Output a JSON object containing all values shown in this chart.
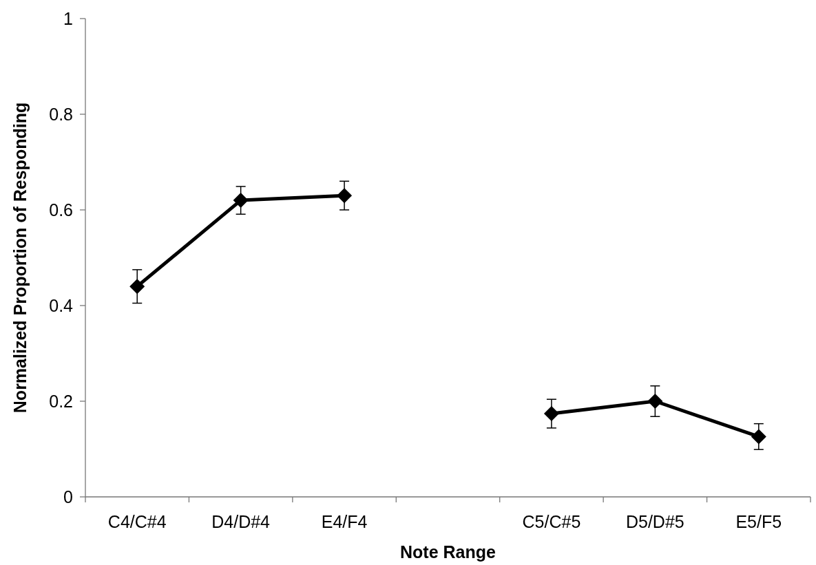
{
  "chart_data": {
    "type": "line",
    "xlabel": "Note Range",
    "ylabel": "Normalized Proportion of Responding",
    "categories": [
      "C4/C#4",
      "D4/D#4",
      "E4/F4",
      null,
      "C5/C#5",
      "D5/D#5",
      "E5/F5"
    ],
    "series": [
      {
        "color": "#000000",
        "values": [
          0.44,
          0.62,
          0.63,
          null,
          0.174,
          0.2,
          0.126
        ],
        "errors": [
          0.035,
          0.029,
          0.03,
          null,
          0.03,
          0.032,
          0.027
        ]
      }
    ],
    "ylim": [
      0,
      1
    ],
    "yticks": [
      0,
      0.2,
      0.4,
      0.6,
      0.8,
      1
    ],
    "grid": false,
    "marker": "diamond",
    "line_style": "solid"
  }
}
